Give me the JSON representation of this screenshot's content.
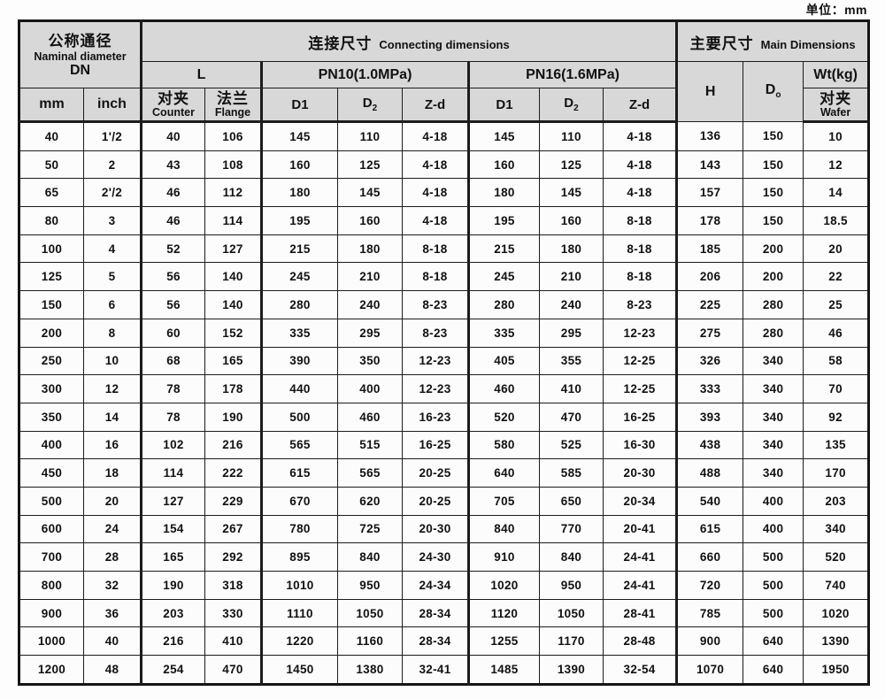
{
  "unit_label": "单位：mm",
  "header": {
    "nominal_cn": "公称通径",
    "nominal_en": "Naminal diameter",
    "dn": "DN",
    "connecting_cn": "连接尺寸",
    "connecting_en": "Connecting dimensions",
    "main_cn": "主要尺寸",
    "main_en": "Main Dimensions",
    "l_label": "L",
    "pn10_label": "PN10(1.0MPa)",
    "pn16_label": "PN16(1.6MPa)",
    "h_label": "H",
    "d0_base": "D",
    "d0_sub": "o",
    "wt_label": "Wt(kg)",
    "mm_label": "mm",
    "inch_label": "inch",
    "counter_cn": "对夹",
    "counter_en": "Counter",
    "flange_cn": "法兰",
    "flange_en": "Flange",
    "d1_label": "D1",
    "d2_base": "D",
    "d2_sub": "2",
    "zd_label": "Z-d",
    "wafer_cn": "对夹",
    "wafer_en": "Wafer"
  },
  "table": {
    "column_keys": [
      "dn-mm",
      "dn-inch",
      "l-counter",
      "l-flange",
      "pn10-d1",
      "pn10-d2",
      "pn10-zd",
      "pn16-d1",
      "pn16-d2",
      "pn16-zd",
      "h",
      "d0",
      "wt-wafer"
    ],
    "rows": [
      [
        "40",
        "1'/2",
        "40",
        "106",
        "145",
        "110",
        "4-18",
        "145",
        "110",
        "4-18",
        "136",
        "150",
        "10"
      ],
      [
        "50",
        "2",
        "43",
        "108",
        "160",
        "125",
        "4-18",
        "160",
        "125",
        "4-18",
        "143",
        "150",
        "12"
      ],
      [
        "65",
        "2'/2",
        "46",
        "112",
        "180",
        "145",
        "4-18",
        "180",
        "145",
        "4-18",
        "157",
        "150",
        "14"
      ],
      [
        "80",
        "3",
        "46",
        "114",
        "195",
        "160",
        "4-18",
        "195",
        "160",
        "8-18",
        "178",
        "150",
        "18.5"
      ],
      [
        "100",
        "4",
        "52",
        "127",
        "215",
        "180",
        "8-18",
        "215",
        "180",
        "8-18",
        "185",
        "200",
        "20"
      ],
      [
        "125",
        "5",
        "56",
        "140",
        "245",
        "210",
        "8-18",
        "245",
        "210",
        "8-18",
        "206",
        "200",
        "22"
      ],
      [
        "150",
        "6",
        "56",
        "140",
        "280",
        "240",
        "8-23",
        "280",
        "240",
        "8-23",
        "225",
        "280",
        "25"
      ],
      [
        "200",
        "8",
        "60",
        "152",
        "335",
        "295",
        "8-23",
        "335",
        "295",
        "12-23",
        "275",
        "280",
        "46"
      ],
      [
        "250",
        "10",
        "68",
        "165",
        "390",
        "350",
        "12-23",
        "405",
        "355",
        "12-25",
        "326",
        "340",
        "58"
      ],
      [
        "300",
        "12",
        "78",
        "178",
        "440",
        "400",
        "12-23",
        "460",
        "410",
        "12-25",
        "333",
        "340",
        "70"
      ],
      [
        "350",
        "14",
        "78",
        "190",
        "500",
        "460",
        "16-23",
        "520",
        "470",
        "16-25",
        "393",
        "340",
        "92"
      ],
      [
        "400",
        "16",
        "102",
        "216",
        "565",
        "515",
        "16-25",
        "580",
        "525",
        "16-30",
        "438",
        "340",
        "135"
      ],
      [
        "450",
        "18",
        "114",
        "222",
        "615",
        "565",
        "20-25",
        "640",
        "585",
        "20-30",
        "488",
        "340",
        "170"
      ],
      [
        "500",
        "20",
        "127",
        "229",
        "670",
        "620",
        "20-25",
        "705",
        "650",
        "20-34",
        "540",
        "400",
        "203"
      ],
      [
        "600",
        "24",
        "154",
        "267",
        "780",
        "725",
        "20-30",
        "840",
        "770",
        "20-41",
        "615",
        "400",
        "340"
      ],
      [
        "700",
        "28",
        "165",
        "292",
        "895",
        "840",
        "24-30",
        "910",
        "840",
        "24-41",
        "660",
        "500",
        "520"
      ],
      [
        "800",
        "32",
        "190",
        "318",
        "1010",
        "950",
        "24-34",
        "1020",
        "950",
        "24-41",
        "720",
        "500",
        "740"
      ],
      [
        "900",
        "36",
        "203",
        "330",
        "1110",
        "1050",
        "28-34",
        "1120",
        "1050",
        "28-41",
        "785",
        "500",
        "1020"
      ],
      [
        "1000",
        "40",
        "216",
        "410",
        "1220",
        "1160",
        "28-34",
        "1255",
        "1170",
        "28-48",
        "900",
        "640",
        "1390"
      ],
      [
        "1200",
        "48",
        "254",
        "470",
        "1450",
        "1380",
        "32-41",
        "1485",
        "1390",
        "32-54",
        "1070",
        "640",
        "1950"
      ]
    ]
  }
}
